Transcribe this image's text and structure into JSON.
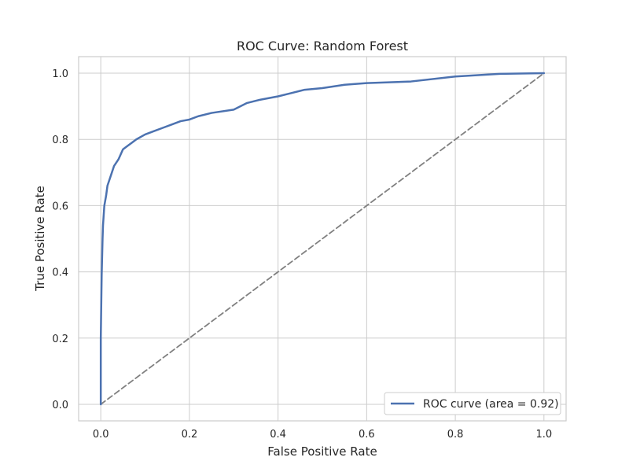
{
  "chart_data": {
    "type": "line",
    "title": "ROC Curve: Random Forest",
    "xlabel": "False Positive Rate",
    "ylabel": "True Positive Rate",
    "xlim": [
      -0.05,
      1.05
    ],
    "ylim": [
      -0.05,
      1.05
    ],
    "xticks": [
      0.0,
      0.2,
      0.4,
      0.6,
      0.8,
      1.0
    ],
    "yticks": [
      0.0,
      0.2,
      0.4,
      0.6,
      0.8,
      1.0
    ],
    "xtick_labels": [
      "0.0",
      "0.2",
      "0.4",
      "0.6",
      "0.8",
      "1.0"
    ],
    "ytick_labels": [
      "0.0",
      "0.2",
      "0.4",
      "0.6",
      "0.8",
      "1.0"
    ],
    "grid": true,
    "legend_position": "lower-right",
    "series": [
      {
        "name": "ROC curve (area = 0.92)",
        "color": "#4c72b0",
        "style": "solid",
        "x": [
          0.0,
          0.0,
          0.002,
          0.004,
          0.005,
          0.008,
          0.012,
          0.015,
          0.02,
          0.025,
          0.03,
          0.04,
          0.05,
          0.06,
          0.07,
          0.08,
          0.1,
          0.12,
          0.14,
          0.16,
          0.18,
          0.2,
          0.22,
          0.25,
          0.3,
          0.33,
          0.36,
          0.4,
          0.43,
          0.46,
          0.5,
          0.55,
          0.6,
          0.7,
          0.8,
          0.9,
          1.0
        ],
        "y": [
          0.0,
          0.2,
          0.39,
          0.5,
          0.54,
          0.6,
          0.63,
          0.66,
          0.68,
          0.7,
          0.72,
          0.74,
          0.77,
          0.78,
          0.79,
          0.8,
          0.815,
          0.825,
          0.835,
          0.845,
          0.855,
          0.86,
          0.87,
          0.88,
          0.89,
          0.91,
          0.92,
          0.93,
          0.94,
          0.95,
          0.955,
          0.965,
          0.97,
          0.975,
          0.99,
          0.998,
          1.0
        ]
      },
      {
        "name": "",
        "color": "#808080",
        "style": "dashed",
        "x": [
          0.0,
          1.0
        ],
        "y": [
          0.0,
          1.0
        ]
      }
    ]
  }
}
